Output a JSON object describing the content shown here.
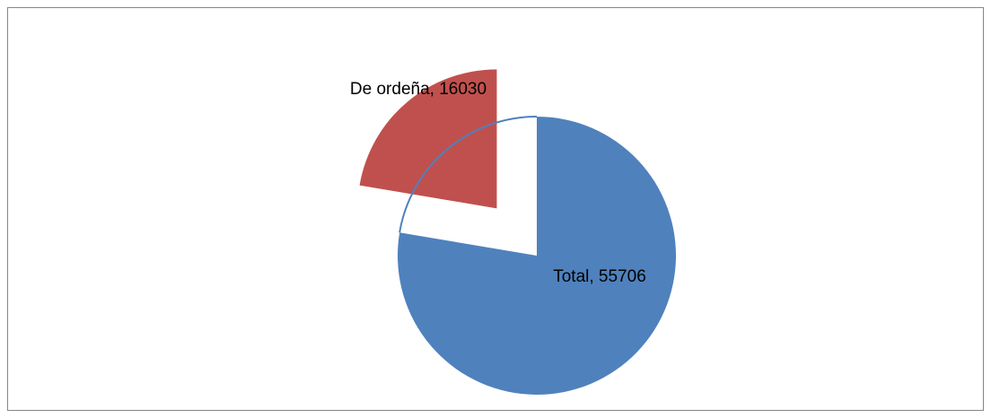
{
  "chart_data": {
    "type": "pie",
    "categories": [
      "Total",
      "De ordeña"
    ],
    "values": [
      55706,
      16030
    ],
    "colors": [
      "#4f81bd",
      "#c0504d"
    ],
    "exploded": [
      false,
      true
    ]
  }
}
